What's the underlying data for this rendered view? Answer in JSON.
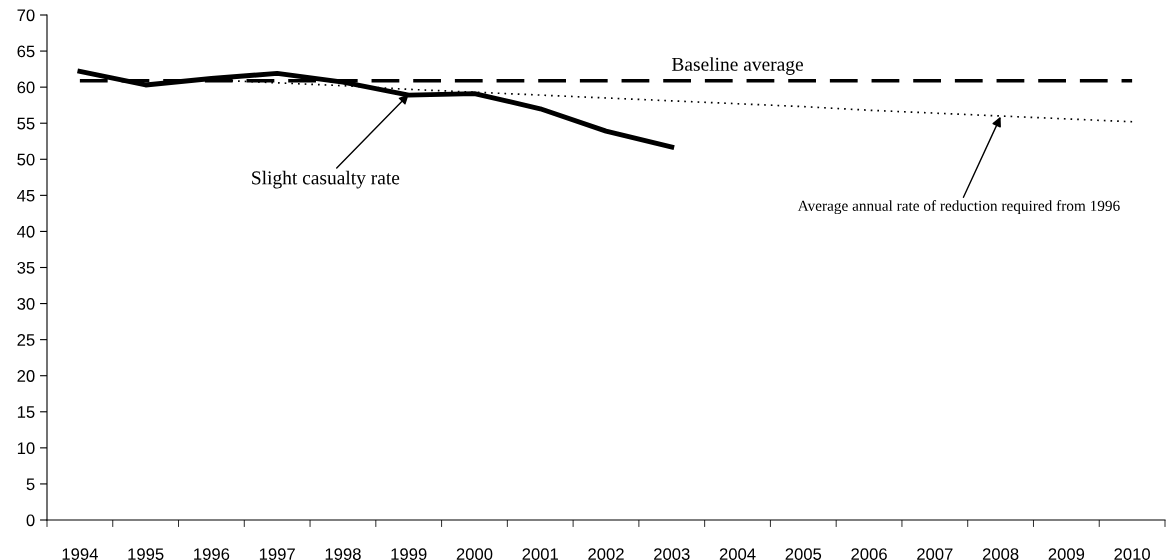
{
  "chart_data": {
    "type": "line",
    "categories": [
      "1994",
      "1995",
      "1996",
      "1997",
      "1998",
      "1999",
      "2000",
      "2001",
      "2002",
      "2003",
      "2004",
      "2005",
      "2006",
      "2007",
      "2008",
      "2009",
      "2010"
    ],
    "ylim": [
      0,
      70
    ],
    "yticks": [
      0,
      5,
      10,
      15,
      20,
      25,
      30,
      35,
      40,
      45,
      50,
      55,
      60,
      65,
      70
    ],
    "grid": false,
    "legend": false,
    "marker": "none",
    "series": [
      {
        "color": "#000000",
        "line_style": "solid",
        "values": [
          62.2,
          60.3,
          61.2,
          61.9,
          60.7,
          58.9,
          59.1,
          57.0,
          53.9,
          51.7,
          null,
          null,
          null,
          null,
          null,
          null,
          null
        ]
      },
      {
        "name": "Baseline average",
        "color": "#000000",
        "line_style": "dashed",
        "values": [
          60.9,
          60.9,
          60.9,
          60.9,
          60.9,
          60.9,
          60.9,
          60.9,
          60.9,
          60.9,
          60.9,
          60.9,
          60.9,
          60.9,
          60.9,
          60.9,
          60.9
        ]
      },
      {
        "color": "#000000",
        "line_style": "dotted",
        "values": [
          null,
          null,
          61.0,
          60.6,
          60.2,
          59.7,
          59.3,
          58.9,
          58.5,
          58.1,
          57.7,
          57.3,
          56.8,
          56.4,
          56.0,
          55.6,
          55.2
        ]
      }
    ],
    "annotations": [
      {
        "text": "Slight casualty rate",
        "x": "1999",
        "y": 59.0
      },
      {
        "text": "Average annual rate of reduction required from 1996",
        "x": "2008",
        "y": 55.9
      }
    ]
  }
}
